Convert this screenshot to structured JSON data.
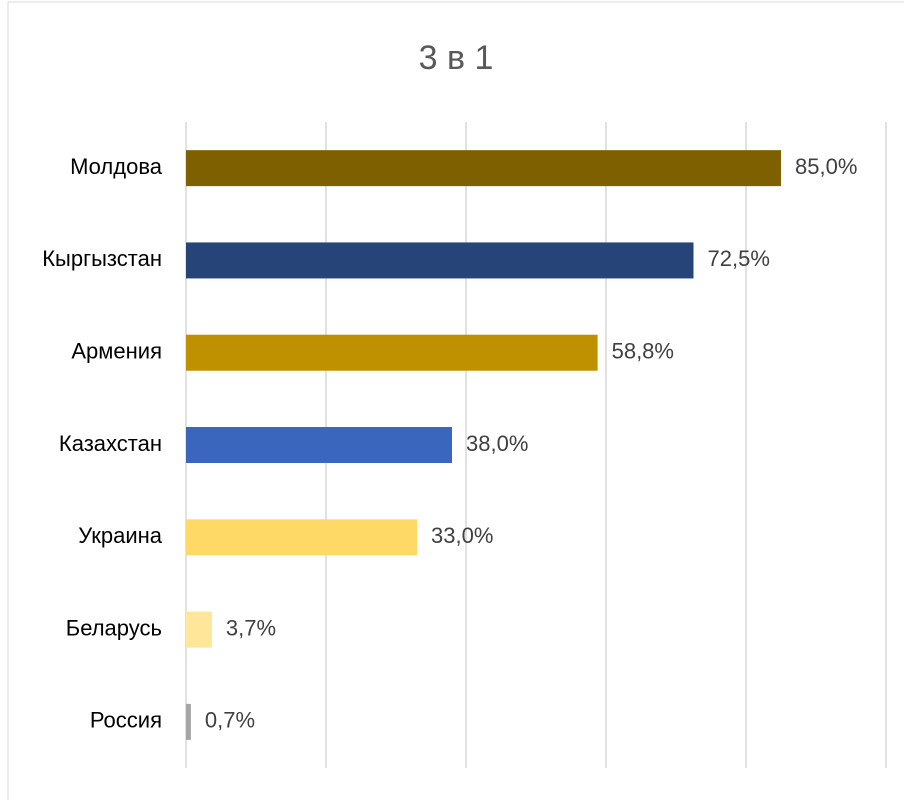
{
  "chart_data": {
    "type": "bar",
    "orientation": "horizontal",
    "title": "3 в 1",
    "categories": [
      "Молдова",
      "Кыргызстан",
      "Армения",
      "Казахстан",
      "Украина",
      "Беларусь",
      "Россия"
    ],
    "values": [
      85.0,
      72.5,
      58.8,
      38.0,
      33.0,
      3.7,
      0.7
    ],
    "value_labels": [
      "85,0%",
      "72,5%",
      "58,8%",
      "38,0%",
      "33,0%",
      "3,7%",
      "0,7%"
    ],
    "colors": [
      "#7f6000",
      "#264478",
      "#bf9000",
      "#3a66bd",
      "#ffd966",
      "#ffe699",
      "#a5a5a5"
    ],
    "xlim": [
      0,
      100
    ],
    "xticks": [
      0,
      20,
      40,
      60,
      80,
      100
    ],
    "grid": true
  }
}
